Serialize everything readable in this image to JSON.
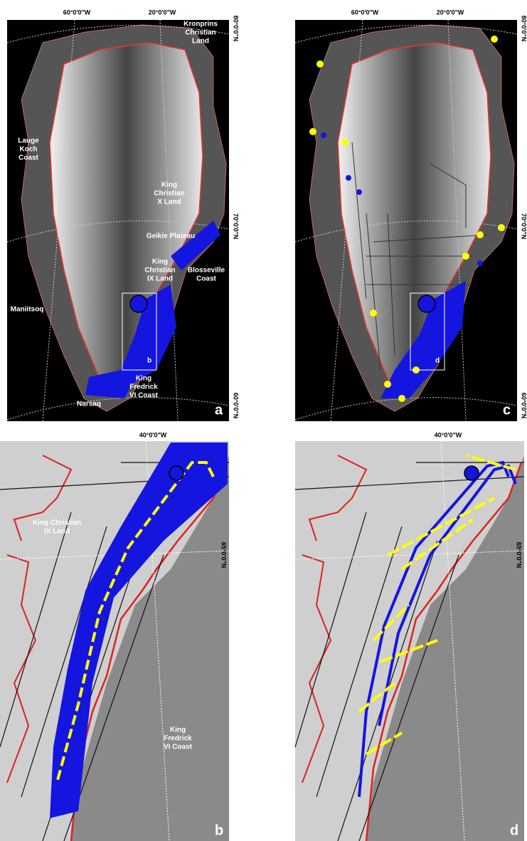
{
  "panels": [
    {
      "letter": "a",
      "lon": [
        "60°0'0\"W",
        "20°0'0\"W"
      ],
      "lat": [
        "80°0'0\"N",
        "70°0'0\"N",
        "60°0'0\"N"
      ],
      "inset": "b",
      "places": [
        [
          "Kronprins",
          "Christian",
          "Land"
        ],
        [
          "Lauge",
          "Koch",
          "Coast"
        ],
        [
          "King",
          "Christian",
          "X Land"
        ],
        [
          "Geikie Plateau"
        ],
        [
          "King",
          "Christian",
          "IX Land"
        ],
        [
          "Blosseville",
          "Coast"
        ],
        [
          "Maniitsoq"
        ],
        [
          "Narsaq"
        ],
        [
          "King",
          "Fredrick",
          "VI Coast"
        ]
      ]
    },
    {
      "letter": "c",
      "lon": [
        "60°0'0\"W",
        "20°0'0\"W"
      ],
      "lat": [
        "80°0'0\"N",
        "70°0'0\"N",
        "60°0'0\"N"
      ],
      "inset": "d",
      "places": []
    },
    {
      "letter": "b",
      "lon": [
        "40°0'0\"W"
      ],
      "lat": [
        "65°0'0\"N"
      ],
      "places": [
        [
          "King Christian",
          "IX Land"
        ],
        [
          "King",
          "Fredrick",
          "VI Coast"
        ]
      ]
    },
    {
      "letter": "d",
      "lon": [
        "40°0'0\"W"
      ],
      "lat": [
        "65°0'0\"N"
      ],
      "places": []
    }
  ]
}
